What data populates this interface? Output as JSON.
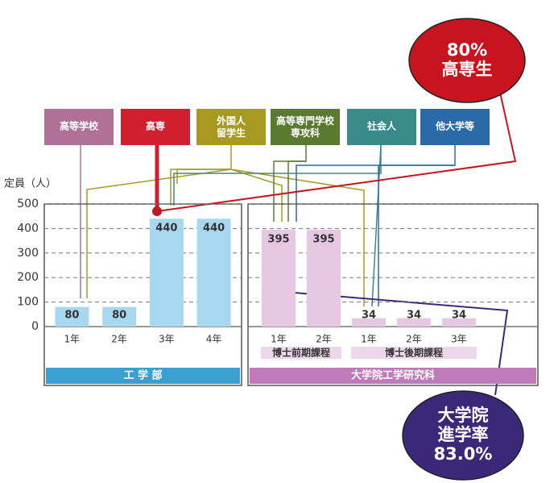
{
  "chart_data": {
    "type": "bar",
    "ylabel": "定員（人）",
    "ylim": [
      0,
      500
    ],
    "yticks": [
      0,
      100,
      200,
      300,
      400,
      500
    ],
    "grid": true,
    "sources": [
      "高等学校",
      "高専",
      "外国人\n留学生",
      "高等専門学校\n専攻科",
      "社会人",
      "他大学等"
    ],
    "source_colors": [
      "#b07098",
      "#d02030",
      "#a89a20",
      "#5a7a30",
      "#3a8a8a",
      "#2a6aa8"
    ],
    "panels": [
      {
        "name": "工 学 部",
        "color": "#a8d8f0",
        "band_color": "#3aa0d0",
        "programs": [
          {
            "name": null,
            "categories": [
              "1年",
              "2年",
              "3年",
              "4年"
            ],
            "values": [
              80,
              80,
              440,
              440
            ]
          }
        ]
      },
      {
        "name": "大学院工学研究科",
        "color": "#e6c8e2",
        "band_color": "#c07ab8",
        "programs": [
          {
            "name": "博士前期課程",
            "categories": [
              "1年",
              "2年"
            ],
            "values": [
              395,
              395
            ]
          },
          {
            "name": "博士後期課程",
            "categories": [
              "1年",
              "2年",
              "3年"
            ],
            "values": [
              34,
              34,
              34
            ]
          }
        ]
      }
    ],
    "callouts": [
      {
        "lines": [
          "80%",
          "高専生"
        ],
        "color": "#c8141e"
      },
      {
        "lines": [
          "大学院",
          "進学率",
          "83.0%"
        ],
        "color": "#3c2878"
      }
    ]
  }
}
